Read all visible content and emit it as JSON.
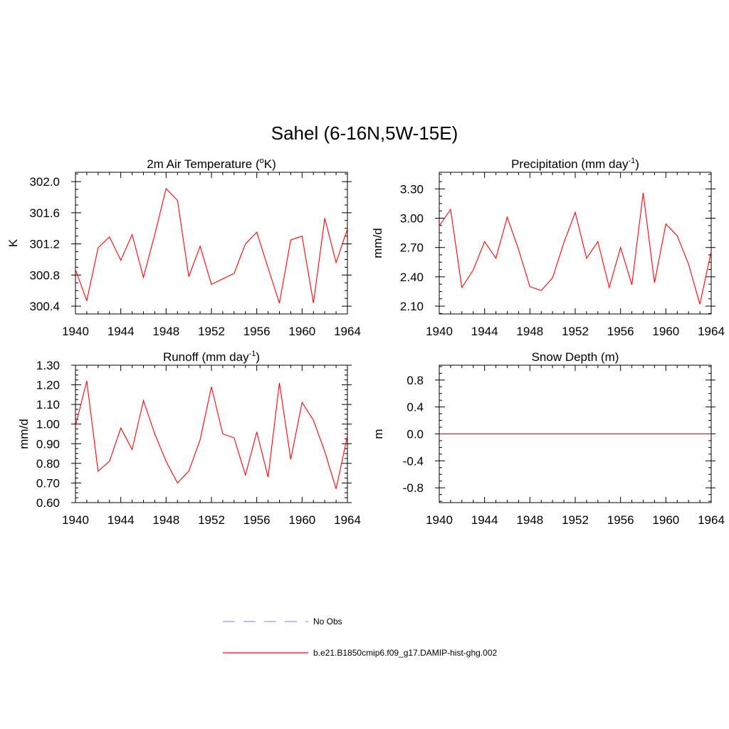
{
  "figure": {
    "title": "Sahel (6-16N,5W-15E)",
    "legend": [
      {
        "label": "No Obs",
        "color": "#9999ff",
        "style": "dashed"
      },
      {
        "label": "b.e21.B1850cmip6.f09_g17.DAMIP-hist-ghg.002",
        "color": "#ff0000",
        "style": "solid"
      }
    ]
  },
  "chart_data": [
    {
      "type": "line",
      "title": "2m Air Temperature (",
      "title_sup": "o",
      "title_end": "K)",
      "ylabel": "K",
      "xlim": [
        1940,
        1964
      ],
      "ylim": [
        300.3,
        302.12
      ],
      "xticks": [
        1940,
        1944,
        1948,
        1952,
        1956,
        1960,
        1964
      ],
      "yticks": [
        300.4,
        300.8,
        301.2,
        301.6,
        302.0
      ],
      "ytick_labels": [
        "300.4",
        "300.8",
        "301.2",
        "301.6",
        "302.0"
      ],
      "color": "#ff0000",
      "x": [
        1940,
        1941,
        1942,
        1943,
        1944,
        1945,
        1946,
        1947,
        1948,
        1949,
        1950,
        1951,
        1952,
        1953,
        1954,
        1955,
        1956,
        1957,
        1958,
        1959,
        1960,
        1961,
        1962,
        1963,
        1964
      ],
      "values": [
        300.87,
        300.47,
        301.15,
        301.29,
        300.99,
        301.32,
        300.77,
        301.32,
        301.91,
        301.76,
        300.78,
        301.17,
        300.68,
        300.75,
        300.82,
        301.2,
        301.35,
        300.89,
        300.44,
        301.25,
        301.3,
        300.44,
        301.53,
        300.96,
        301.39
      ]
    },
    {
      "type": "line",
      "title": "Precipitation (mm day",
      "title_sup": "-1",
      "title_end": ")",
      "ylabel": "mm/d",
      "xlim": [
        1940,
        1964
      ],
      "ylim": [
        2.02,
        3.47
      ],
      "xticks": [
        1940,
        1944,
        1948,
        1952,
        1956,
        1960,
        1964
      ],
      "yticks": [
        2.1,
        2.4,
        2.7,
        3.0,
        3.3
      ],
      "ytick_labels": [
        "2.10",
        "2.40",
        "2.70",
        "3.00",
        "3.30"
      ],
      "color": "#ff0000",
      "x": [
        1940,
        1941,
        1942,
        1943,
        1944,
        1945,
        1946,
        1947,
        1948,
        1949,
        1950,
        1951,
        1952,
        1953,
        1954,
        1955,
        1956,
        1957,
        1958,
        1959,
        1960,
        1961,
        1962,
        1963,
        1964
      ],
      "values": [
        2.92,
        3.09,
        2.29,
        2.47,
        2.76,
        2.59,
        3.01,
        2.68,
        2.3,
        2.26,
        2.39,
        2.75,
        3.06,
        2.59,
        2.76,
        2.29,
        2.7,
        2.32,
        3.26,
        2.34,
        2.94,
        2.82,
        2.53,
        2.12,
        2.66
      ]
    },
    {
      "type": "line",
      "title": "Runoff (mm day",
      "title_sup": "-1",
      "title_end": ")",
      "ylabel": "mm/d",
      "xlim": [
        1940,
        1964
      ],
      "ylim": [
        0.6,
        1.3
      ],
      "xticks": [
        1940,
        1944,
        1948,
        1952,
        1956,
        1960,
        1964
      ],
      "yticks": [
        0.6,
        0.7,
        0.8,
        0.9,
        1.0,
        1.1,
        1.2,
        1.3
      ],
      "ytick_labels": [
        "0.60",
        "0.70",
        "0.80",
        "0.90",
        "1.00",
        "1.10",
        "1.20",
        "1.30"
      ],
      "color": "#ff0000",
      "x": [
        1940,
        1941,
        1942,
        1943,
        1944,
        1945,
        1946,
        1947,
        1948,
        1949,
        1950,
        1951,
        1952,
        1953,
        1954,
        1955,
        1956,
        1957,
        1958,
        1959,
        1960,
        1961,
        1962,
        1963,
        1964
      ],
      "values": [
        0.99,
        1.22,
        0.76,
        0.81,
        0.98,
        0.87,
        1.12,
        0.95,
        0.81,
        0.7,
        0.76,
        0.92,
        1.19,
        0.95,
        0.93,
        0.74,
        0.96,
        0.73,
        1.21,
        0.82,
        1.11,
        1.02,
        0.86,
        0.67,
        0.94
      ]
    },
    {
      "type": "line",
      "title": "Snow Depth (m)",
      "title_sup": "",
      "title_end": "",
      "ylabel": "m",
      "xlim": [
        1940,
        1964
      ],
      "ylim": [
        -1.02,
        1.02
      ],
      "xticks": [
        1940,
        1944,
        1948,
        1952,
        1956,
        1960,
        1964
      ],
      "yticks": [
        -0.8,
        -0.4,
        0.0,
        0.4,
        0.8
      ],
      "ytick_labels": [
        "-0.8",
        "-0.4",
        "0.0",
        "0.4",
        "0.8"
      ],
      "color": "#ff0000",
      "x": [
        1940,
        1941,
        1942,
        1943,
        1944,
        1945,
        1946,
        1947,
        1948,
        1949,
        1950,
        1951,
        1952,
        1953,
        1954,
        1955,
        1956,
        1957,
        1958,
        1959,
        1960,
        1961,
        1962,
        1963,
        1964
      ],
      "values": [
        0,
        0,
        0,
        0,
        0,
        0,
        0,
        0,
        0,
        0,
        0,
        0,
        0,
        0,
        0,
        0,
        0,
        0,
        0,
        0,
        0,
        0,
        0,
        0,
        0
      ]
    }
  ]
}
